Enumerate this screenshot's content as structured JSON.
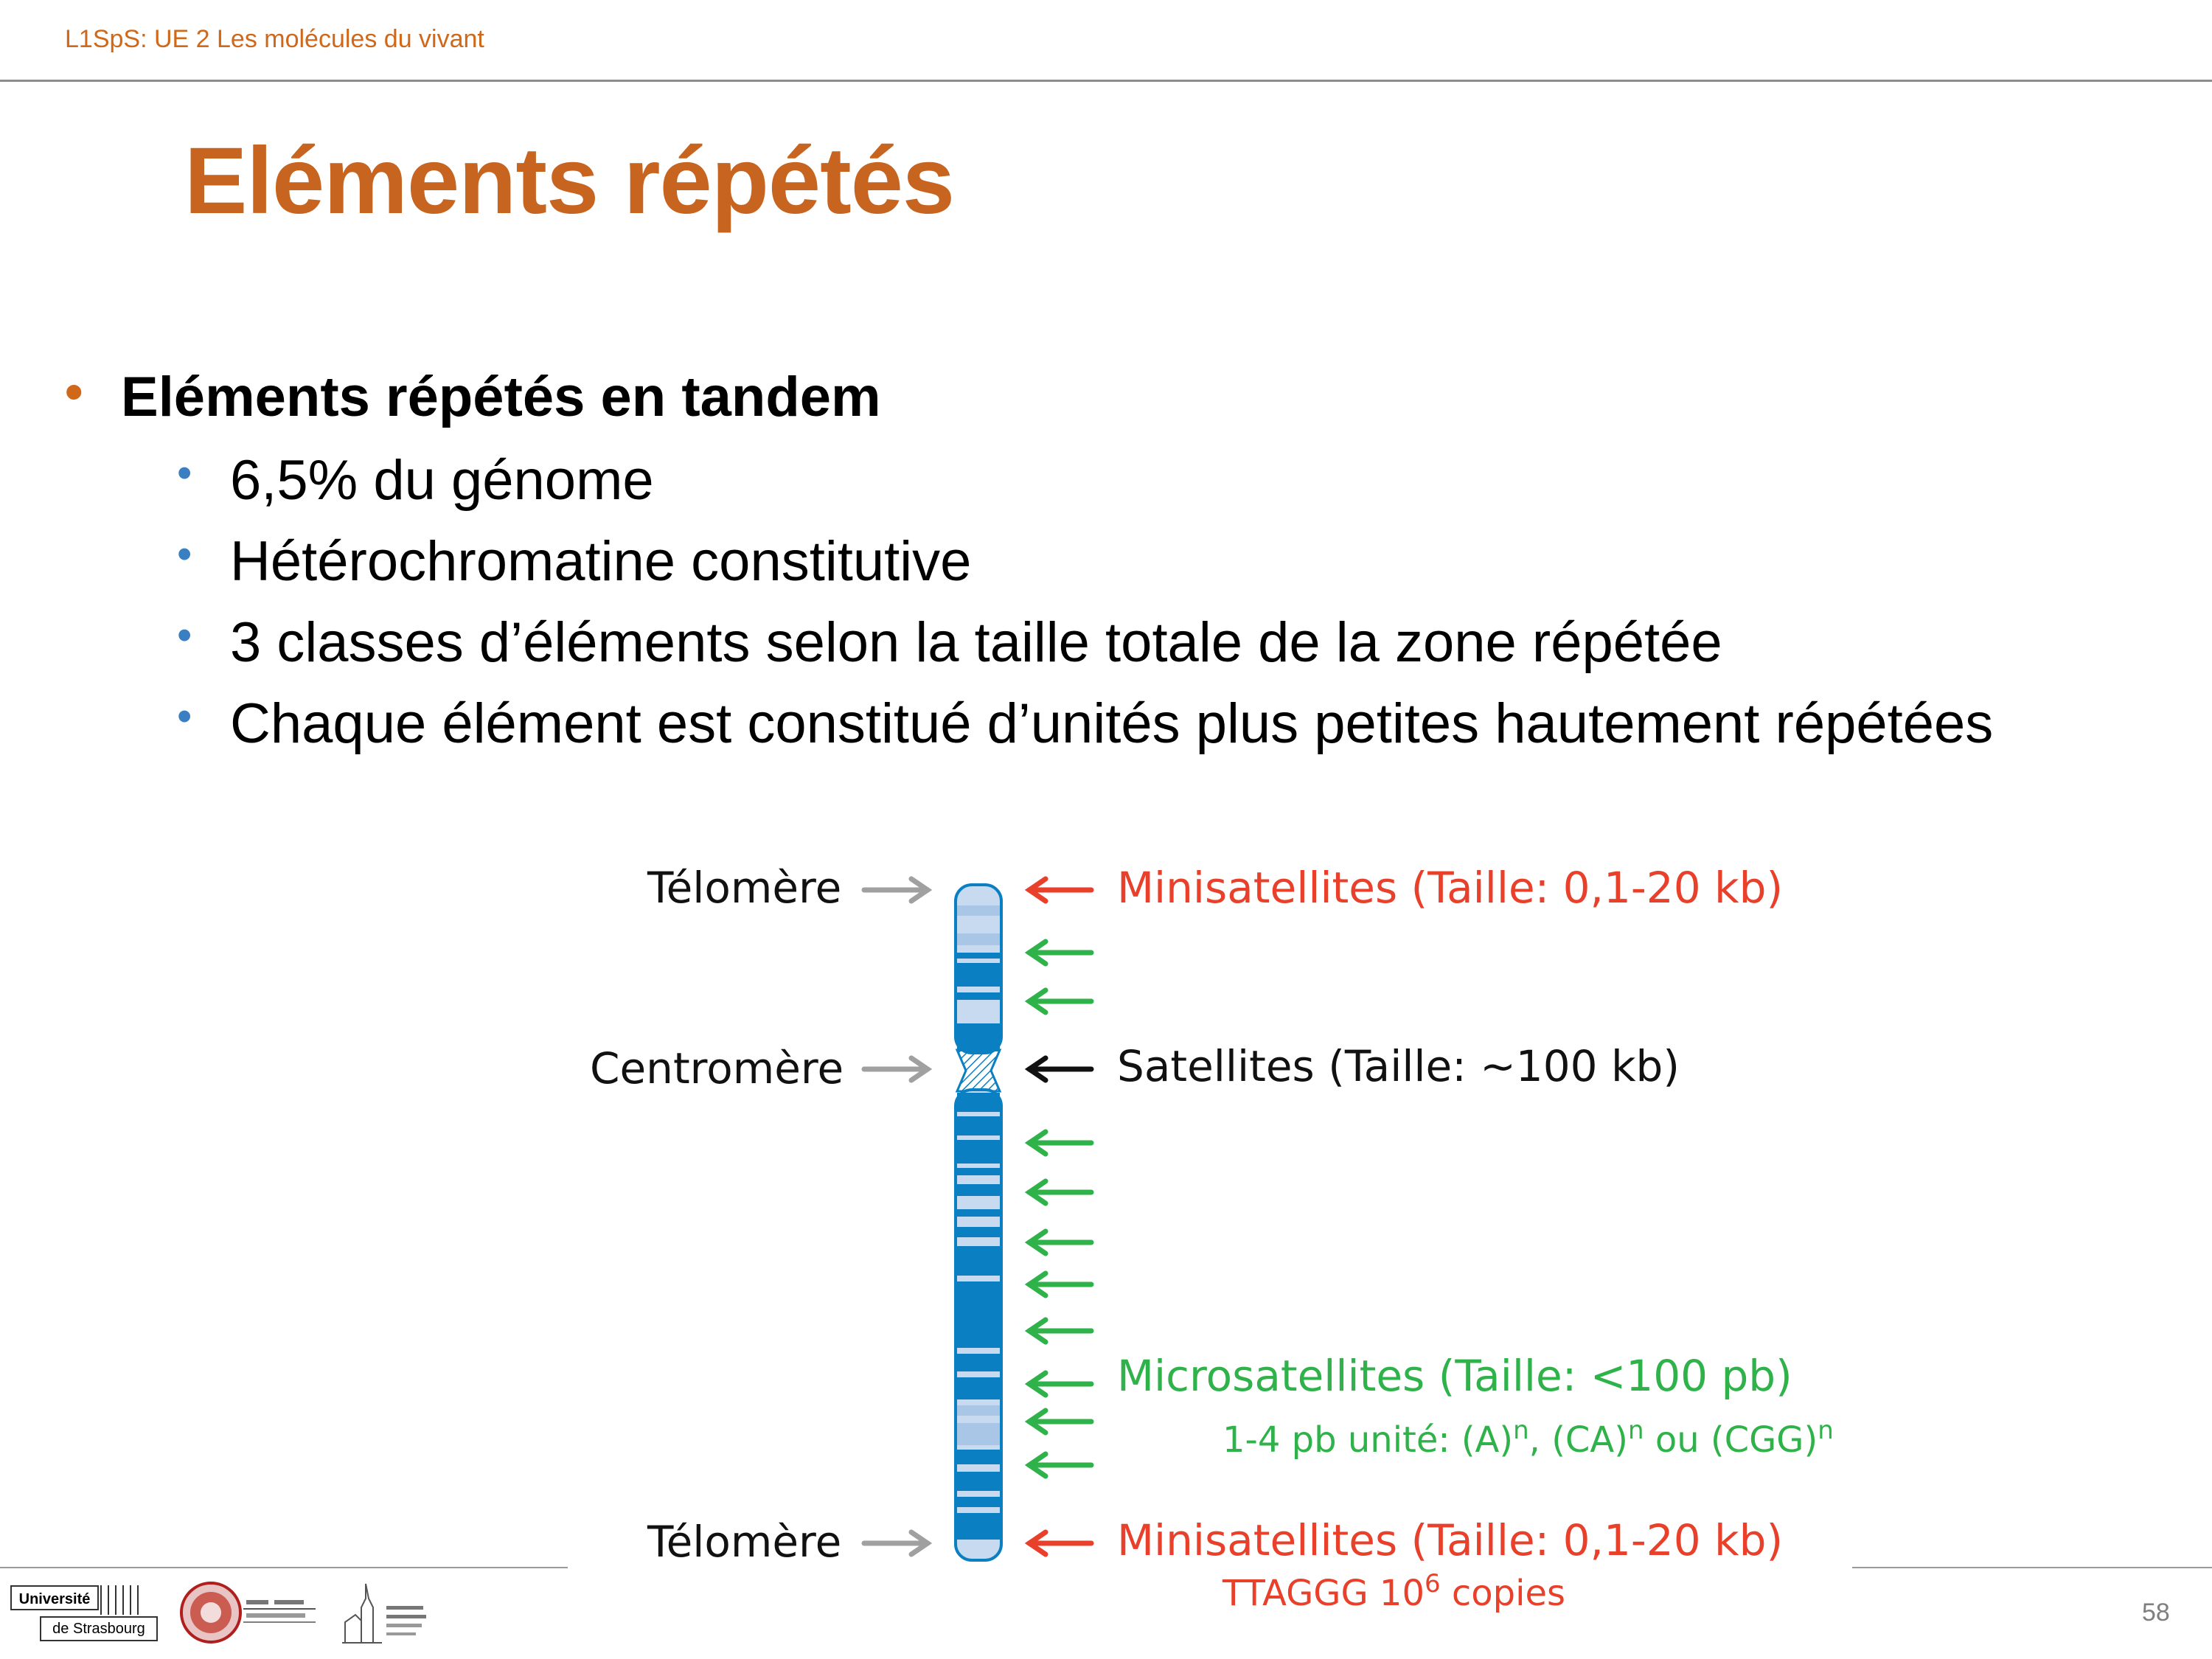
{
  "header": {
    "text": "L1SpS: UE 2 Les molécules du vivant"
  },
  "title": "Eléments répétés",
  "bullets": {
    "main": "Eléments répétés en tandem",
    "sub": [
      "6,5% du génome",
      "Hétérochromatine constitutive",
      "3 classes d’éléments selon la taille totale de la zone répétée",
      "Chaque élément est constitué d’unités plus petites hautement répétées"
    ],
    "dot_l1": "•",
    "dot_l2": "•"
  },
  "diagram": {
    "left_labels": {
      "telomere_top": "Télomère",
      "centromere": "Centromère",
      "telomere_bottom": "Télomère"
    },
    "right_labels": {
      "mini_top": "Minisatellites (Taille: 0,1-20 kb)",
      "satellites": "Satellites (Taille: ~100 kb)",
      "micro": "Microsatellites (Taille: <100 pb)",
      "micro_sub_prefix": "1-4 pb unité: (A)",
      "micro_sub_n": "n",
      "micro_sub_mid1": ", (CA)",
      "micro_sub_mid2": " ou (CGG)",
      "mini_bottom": "Minisatellites (Taille: 0,1-20 kb)",
      "ttaggg_prefix": "TTAGGG 10",
      "ttaggg_exp": "6",
      "ttaggg_suffix": " copies"
    },
    "colors": {
      "red": "#e8402a",
      "green": "#2fb24a",
      "grey": "#a0a0a0",
      "chromosome": "#0a7fc2"
    }
  },
  "footer": {
    "page_number": "58",
    "logo_uds_top": "Université",
    "logo_uds_bottom": "de Strasbourg"
  }
}
